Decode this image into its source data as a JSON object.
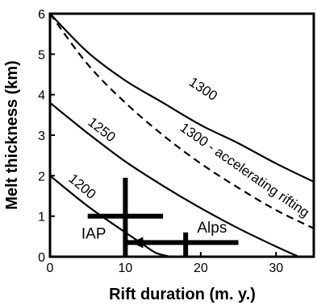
{
  "chart_data": {
    "type": "line",
    "title": "",
    "xlabel": "Rift duration  (m. y.)",
    "ylabel": "Melt thickness (km)",
    "xlim": [
      0,
      35
    ],
    "ylim": [
      0,
      6
    ],
    "xticks": [
      0,
      10,
      20,
      30
    ],
    "yticks": [
      0,
      1,
      2,
      3,
      4,
      5,
      6
    ],
    "grid": false,
    "legend": "none",
    "series": [
      {
        "name": "1300",
        "style": "solid",
        "x": [
          0,
          5,
          10,
          15,
          20,
          25,
          30,
          35
        ],
        "y": [
          6.0,
          5.05,
          4.35,
          3.8,
          3.25,
          2.8,
          2.3,
          1.85
        ]
      },
      {
        "name": "1300 - accelerating rifting",
        "style": "dashed",
        "x": [
          0,
          5,
          10,
          15,
          20,
          25,
          30,
          35
        ],
        "y": [
          6.0,
          4.75,
          3.8,
          3.0,
          2.3,
          1.7,
          1.15,
          0.7
        ]
      },
      {
        "name": "1250",
        "style": "solid",
        "x": [
          0,
          5,
          10,
          15,
          20,
          25,
          30,
          33
        ],
        "y": [
          3.8,
          3.05,
          2.35,
          1.75,
          1.2,
          0.7,
          0.25,
          0.0
        ]
      },
      {
        "name": "1200",
        "style": "solid",
        "x": [
          0,
          5,
          10,
          12,
          14,
          16
        ],
        "y": [
          2.0,
          1.25,
          0.6,
          0.35,
          0.1,
          0.0
        ]
      }
    ],
    "annotations": [
      {
        "label": "IAP",
        "type": "error-cross",
        "x": 10,
        "y": 1.0,
        "x_range": [
          5,
          15
        ],
        "y_range": [
          0,
          1.95
        ]
      },
      {
        "label": "Alps",
        "type": "error-cross-arrow",
        "x": 18,
        "y": 0.35,
        "x_range": [
          10,
          25
        ],
        "y_range": [
          0,
          0.6
        ],
        "arrow_to_x": 10
      }
    ]
  }
}
